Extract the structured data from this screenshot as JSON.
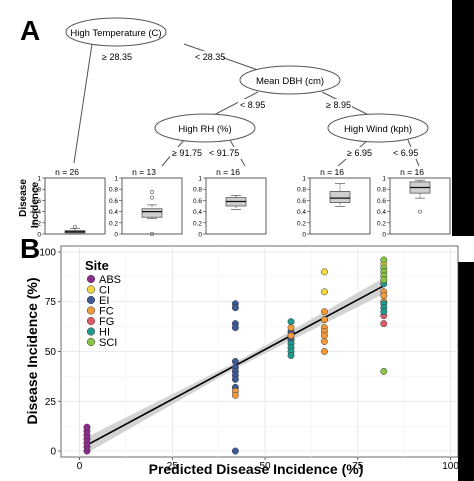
{
  "chart_data": [
    {
      "panel": "A",
      "type": "tree",
      "nodes": [
        {
          "id": "root",
          "label": "High Temperature (C)"
        },
        {
          "id": "dbh",
          "label": "Mean DBH (cm)"
        },
        {
          "id": "rh",
          "label": "High RH (%)"
        },
        {
          "id": "wind",
          "label": "High Wind (kph)"
        }
      ],
      "splits": [
        {
          "from": "root",
          "left": "≥ 28.35",
          "right": "< 28.35"
        },
        {
          "from": "dbh",
          "left": "< 8.95",
          "right": "≥ 8.95"
        },
        {
          "from": "rh",
          "left": "≥ 91.75",
          "right": "< 91.75"
        },
        {
          "from": "wind",
          "left": "≥ 6.95",
          "right": "< 6.95"
        }
      ],
      "leaf_ylabel": "Incidence",
      "leaf_yticks": [
        "1",
        "0.8",
        "0.6",
        "0.4",
        "0.2",
        "0"
      ],
      "leaves": [
        {
          "n": "n = 26",
          "q1": 0.02,
          "med": 0.04,
          "q3": 0.06,
          "wlo": 0.0,
          "whi": 0.1,
          "out": [
            0.13
          ]
        },
        {
          "n": "n = 13",
          "q1": 0.3,
          "med": 0.4,
          "q3": 0.45,
          "wlo": 0.28,
          "whi": 0.52,
          "out": [
            0.75,
            0.65,
            0.0
          ]
        },
        {
          "n": "n = 16",
          "q1": 0.5,
          "med": 0.58,
          "q3": 0.65,
          "wlo": 0.44,
          "whi": 0.69,
          "out": []
        },
        {
          "n": "n = 16",
          "q1": 0.56,
          "med": 0.64,
          "q3": 0.76,
          "wlo": 0.49,
          "whi": 0.9,
          "out": []
        },
        {
          "n": "n = 16",
          "q1": 0.73,
          "med": 0.83,
          "q3": 0.93,
          "wlo": 0.64,
          "whi": 0.96,
          "out": [
            0.4
          ]
        }
      ]
    },
    {
      "panel": "B",
      "type": "scatter",
      "xlabel": "Predicted Disease Incidence (%)",
      "ylabel": "Disease Incidence (%)",
      "xlim": [
        -5,
        102
      ],
      "ylim": [
        -3,
        103
      ],
      "xticks": [
        0,
        25,
        50,
        75,
        100
      ],
      "yticks": [
        0,
        25,
        50,
        75,
        100
      ],
      "grid": true,
      "legend_title": "Site",
      "legend_position": "top-left",
      "fit": {
        "x": [
          2,
          82
        ],
        "y": [
          3,
          83
        ],
        "band": true
      },
      "series": [
        {
          "name": "ABS",
          "color": "#8e2c8e",
          "points": [
            [
              2,
              0
            ],
            [
              2,
              2
            ],
            [
              2,
              4
            ],
            [
              2,
              6
            ],
            [
              2,
              8
            ],
            [
              2,
              10
            ],
            [
              2,
              12
            ]
          ]
        },
        {
          "name": "CI",
          "color": "#f5d742",
          "points": [
            [
              66,
              90
            ],
            [
              66,
              80
            ],
            [
              82,
              94
            ]
          ]
        },
        {
          "name": "EI",
          "color": "#3d5a98",
          "points": [
            [
              42,
              74
            ],
            [
              42,
              72
            ],
            [
              42,
              64
            ],
            [
              42,
              62
            ],
            [
              42,
              45
            ],
            [
              42,
              42
            ],
            [
              42,
              40
            ],
            [
              42,
              38
            ],
            [
              42,
              36
            ],
            [
              42,
              32
            ],
            [
              42,
              0
            ],
            [
              57,
              60
            ],
            [
              57,
              56
            ],
            [
              66,
              66
            ]
          ]
        },
        {
          "name": "FC",
          "color": "#f39a3a",
          "points": [
            [
              42,
              30
            ],
            [
              42,
              28
            ],
            [
              57,
              62
            ],
            [
              57,
              58
            ],
            [
              66,
              70
            ],
            [
              66,
              66
            ],
            [
              66,
              62
            ],
            [
              66,
              60
            ],
            [
              66,
              58
            ],
            [
              66,
              55
            ],
            [
              66,
              50
            ],
            [
              82,
              80
            ],
            [
              82,
              78
            ],
            [
              82,
              75
            ]
          ]
        },
        {
          "name": "FG",
          "color": "#e05a6a",
          "points": [
            [
              82,
              68
            ],
            [
              82,
              64
            ]
          ]
        },
        {
          "name": "HI",
          "color": "#1f9a8e",
          "points": [
            [
              57,
              65
            ],
            [
              57,
              54
            ],
            [
              57,
              52
            ],
            [
              57,
              50
            ],
            [
              57,
              48
            ],
            [
              82,
              74
            ],
            [
              82,
              72
            ],
            [
              82,
              70
            ],
            [
              82,
              84
            ]
          ]
        },
        {
          "name": "SCI",
          "color": "#86c541",
          "points": [
            [
              82,
              96
            ],
            [
              82,
              92
            ],
            [
              82,
              90
            ],
            [
              82,
              88
            ],
            [
              82,
              86
            ],
            [
              82,
              40
            ]
          ]
        }
      ]
    }
  ],
  "labels": {
    "panel_a": "A",
    "panel_b": "B"
  }
}
